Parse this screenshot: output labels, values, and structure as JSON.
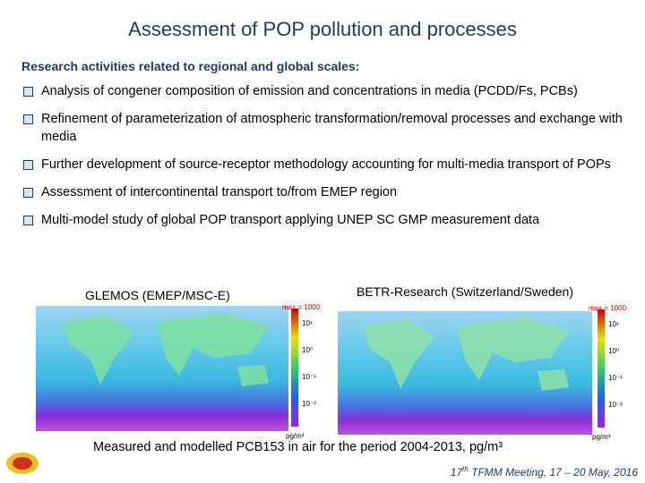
{
  "header": {
    "title": "Assessment of POP pollution and processes",
    "subtitle": "Research activities related to regional and global scales:"
  },
  "bullets": [
    "Analysis of congener composition of emission and concentrations in media (PCDD/Fs, PCBs)",
    "Refinement of parameterization of atmospheric transformation/removal processes and exchange with media",
    "Further development of source-receptor methodology accounting for multi-media transport of POPs",
    "Assessment of intercontinental transport to/from EMEP region",
    "Multi-model study of global POP transport applying UNEP SC GMP measurement data"
  ],
  "maps": [
    {
      "label": "GLEMOS (EMEP/MSC-E)",
      "max": "max = 1000",
      "ticks": [
        "10¹",
        "10⁰",
        "10⁻¹",
        "10⁻²"
      ],
      "unit": "pg/m³"
    },
    {
      "label": "BETR-Research (Switzerland/Sweden)",
      "max": "max = 1000",
      "ticks": [
        "10¹",
        "10⁰",
        "10⁻¹",
        "10⁻²"
      ],
      "unit": "pg/m³"
    }
  ],
  "caption": "Measured and modelled PCB153 in air for the period 2004-2013, pg/m³",
  "footer": {
    "number": "17",
    "sup": "th",
    "rest": " TFMM Meeting, 17 – 20 May, 2016"
  }
}
